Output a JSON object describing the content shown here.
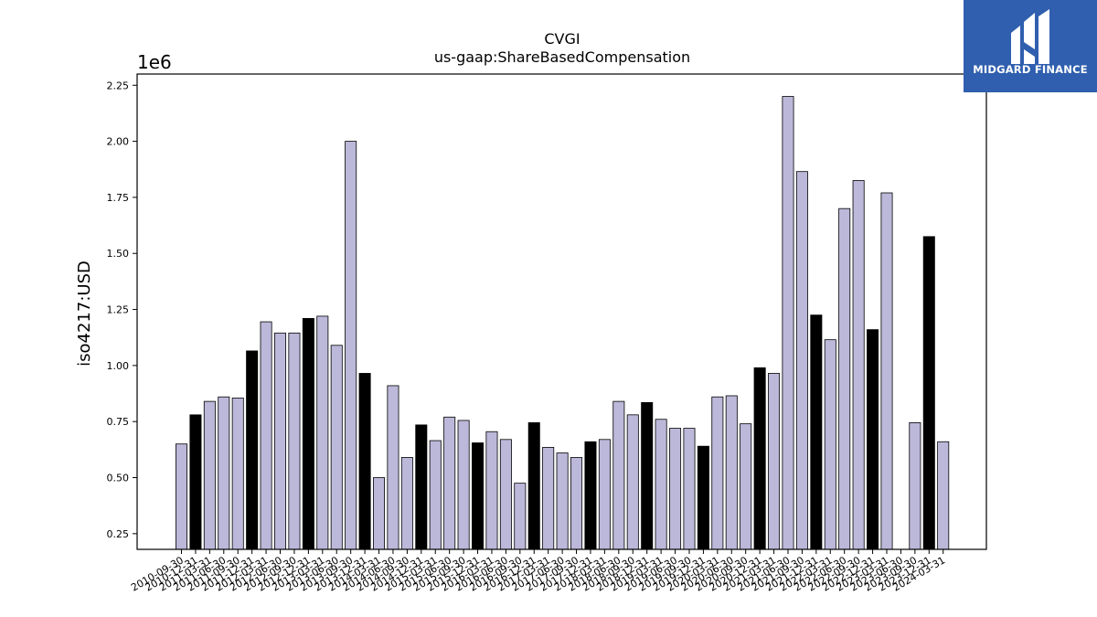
{
  "logo": {
    "name": "MIDGARD FINANCE"
  },
  "chart_data": {
    "type": "bar",
    "title": "CVGI",
    "subtitle": "us-gaap:ShareBasedCompensation",
    "ylabel": "iso4217:USD",
    "multiplier_label": "1e6",
    "ylim": [
      0.18,
      2.3
    ],
    "yticks": [
      "0.25",
      "0.50",
      "0.75",
      "1.00",
      "1.25",
      "1.50",
      "1.75",
      "2.00",
      "2.25"
    ],
    "colors": {
      "quarter": "#bcb8d9",
      "fiscal_year_end": "#000000",
      "edge": "#000000"
    },
    "categories": [
      "2010-09-30",
      "2010-12-31",
      "2011-03-31",
      "2011-06-30",
      "2011-09-30",
      "2011-12-31",
      "2012-03-31",
      "2012-06-30",
      "2012-09-30",
      "2012-12-31",
      "2013-03-31",
      "2013-06-30",
      "2013-09-30",
      "2013-12-31",
      "2014-03-31",
      "2014-06-30",
      "2014-09-30",
      "2014-12-31",
      "2015-03-31",
      "2015-06-30",
      "2015-09-30",
      "2015-12-31",
      "2016-03-31",
      "2016-06-30",
      "2016-09-30",
      "2016-12-31",
      "2017-03-31",
      "2017-06-30",
      "2017-09-30",
      "2017-12-31",
      "2018-03-31",
      "2018-06-30",
      "2018-09-30",
      "2018-12-31",
      "2019-03-31",
      "2019-06-30",
      "2019-09-30",
      "2019-12-31",
      "2020-03-31",
      "2020-06-30",
      "2020-09-30",
      "2020-12-31",
      "2021-03-31",
      "2021-06-30",
      "2021-09-30",
      "2021-12-31",
      "2022-03-31",
      "2022-06-30",
      "2022-09-30",
      "2022-12-31",
      "2023-03-31",
      "2023-06-30",
      "2023-09-30",
      "2023-12-31",
      "2024-03-31"
    ],
    "values": [
      0.65,
      0.78,
      0.84,
      0.86,
      0.855,
      1.065,
      1.195,
      1.145,
      1.145,
      1.21,
      1.22,
      1.09,
      2.0,
      0.965,
      0.5,
      0.91,
      0.59,
      0.735,
      0.665,
      0.77,
      0.755,
      0.655,
      0.705,
      0.67,
      0.475,
      0.745,
      0.635,
      0.61,
      0.59,
      0.66,
      0.67,
      0.84,
      0.78,
      0.835,
      0.76,
      0.72,
      0.72,
      0.64,
      0.86,
      0.865,
      0.74,
      0.99,
      0.965,
      2.2,
      1.865,
      1.225,
      1.115,
      1.7,
      1.825,
      1.16,
      1.77,
      null,
      0.745,
      1.575,
      0.66
    ],
    "fiscal_year_end_flags": [
      false,
      true,
      false,
      false,
      false,
      true,
      false,
      false,
      false,
      true,
      false,
      false,
      false,
      true,
      false,
      false,
      false,
      true,
      false,
      false,
      false,
      true,
      false,
      false,
      false,
      true,
      false,
      false,
      false,
      true,
      false,
      false,
      false,
      true,
      false,
      false,
      false,
      true,
      false,
      false,
      false,
      true,
      false,
      false,
      false,
      true,
      false,
      false,
      false,
      true,
      false,
      false,
      false,
      true,
      false
    ]
  }
}
